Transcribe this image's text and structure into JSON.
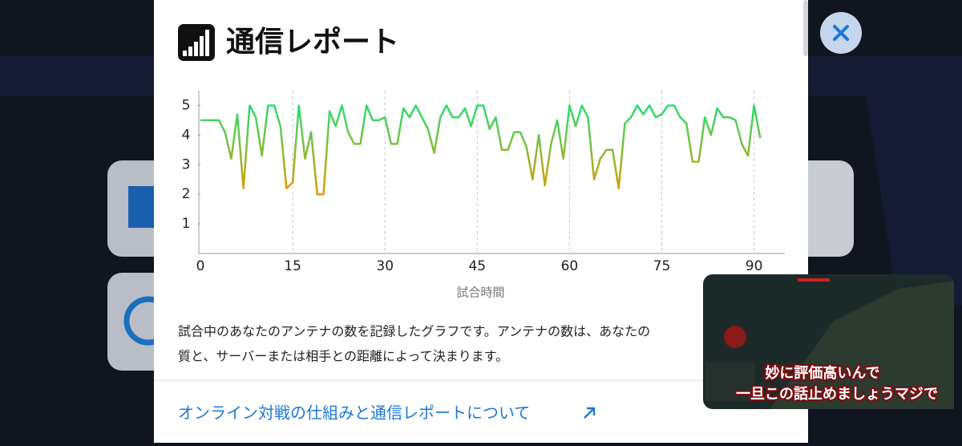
{
  "header": {
    "title": "通信レポート"
  },
  "chart_data": {
    "type": "line",
    "xlabel": "試合時間",
    "x": [
      0,
      1,
      2,
      3,
      4,
      5,
      6,
      7,
      8,
      9,
      10,
      11,
      12,
      13,
      14,
      15,
      16,
      17,
      18,
      19,
      20,
      21,
      22,
      23,
      24,
      25,
      26,
      27,
      28,
      29,
      30,
      31,
      32,
      33,
      34,
      35,
      36,
      37,
      38,
      39,
      40,
      41,
      42,
      43,
      44,
      45,
      46,
      47,
      48,
      49,
      50,
      51,
      52,
      53,
      54,
      55,
      56,
      57,
      58,
      59,
      60,
      61,
      62,
      63,
      64,
      65,
      66,
      67,
      68,
      69,
      70,
      71,
      72,
      73,
      74,
      75,
      76,
      77,
      78,
      79,
      80,
      81,
      82,
      83,
      84,
      85,
      86,
      87,
      88,
      89,
      90,
      91
    ],
    "series": [
      {
        "values": [
          4.5,
          4.5,
          4.5,
          4.5,
          4.1,
          3.2,
          4.7,
          2.2,
          5,
          4.6,
          3.3,
          5,
          5,
          4.3,
          2.2,
          2.4,
          5,
          3.2,
          4.1,
          2,
          2,
          4.8,
          4.3,
          5,
          4.1,
          3.7,
          3.7,
          5,
          4.5,
          4.5,
          4.6,
          3.7,
          3.7,
          4.9,
          4.6,
          5,
          4.6,
          4.2,
          3.4,
          4.6,
          5,
          4.6,
          4.6,
          4.9,
          4.3,
          5,
          5,
          4.2,
          4.6,
          3.5,
          3.5,
          4.1,
          4.1,
          3.6,
          2.5,
          4,
          2.3,
          3.7,
          4.5,
          3.2,
          5,
          4.3,
          5,
          4.6,
          2.5,
          3.2,
          3.5,
          3.5,
          2.2,
          4.4,
          4.6,
          5,
          4.7,
          5,
          4.6,
          4.7,
          5,
          5,
          4.6,
          4.4,
          3.1,
          3.1,
          4.6,
          4,
          4.9,
          4.6,
          4.6,
          4.5,
          3.7,
          3.3,
          5,
          3.9
        ]
      }
    ],
    "line_colors": {
      "high": "#27dd6e",
      "low": "#e39a00"
    },
    "xlim": [
      0,
      95
    ],
    "ylim": [
      0,
      5.5
    ],
    "xticks": [
      0,
      15,
      30,
      45,
      60,
      75,
      90
    ],
    "yticks": [
      1,
      2,
      3,
      4,
      5
    ],
    "grid": true
  },
  "description": [
    "試合中のあなたのアンテナの数を記録したグラフです。アンテナの数は、あなたの",
    "質と、サーバーまたは相手との距離によって決まります。"
  ],
  "link": {
    "text": "オンライン対戦の仕組みと通信レポートについて"
  },
  "video": {
    "subtitles": [
      "妙に評価高いんで",
      "一旦この話止めましょうマジで"
    ]
  }
}
